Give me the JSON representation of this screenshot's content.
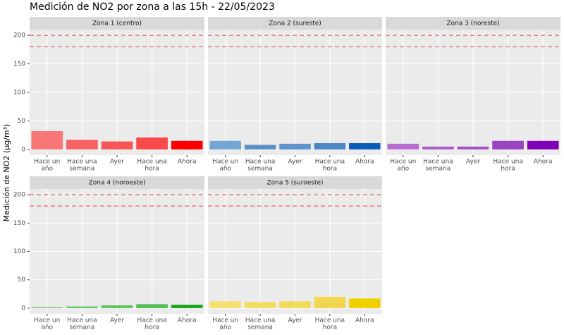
{
  "title": "Medición de NO2 por zona a las 15h - 22/05/2023",
  "y_label": "Medición de NO2 (µg/m³)",
  "chart_data": [
    {
      "type": "bar",
      "title": "Zona 1 (centro)",
      "categories": [
        [
          "Hace un",
          "año"
        ],
        [
          "Hace una",
          "semana"
        ],
        [
          "Ayer"
        ],
        [
          "Hace una",
          "hora"
        ],
        [
          "Ahora"
        ]
      ],
      "values": [
        32,
        17,
        14,
        21,
        15
      ],
      "colors": [
        "#f87676",
        "#f86262",
        "#f85656",
        "#f84a4a",
        "#ff0000"
      ],
      "hlines": [
        200,
        180
      ],
      "hline_color": "#d9473c",
      "ylim": [
        -10,
        210
      ],
      "yticks": [
        0,
        50,
        100,
        150,
        200
      ],
      "grid": true
    },
    {
      "type": "bar",
      "title": "Zona 2 (sureste)",
      "categories": [
        [
          "Hace un",
          "año"
        ],
        [
          "Hace una",
          "semana"
        ],
        [
          "Ayer"
        ],
        [
          "Hace una",
          "hora"
        ],
        [
          "Ahora"
        ]
      ],
      "values": [
        15,
        8,
        10,
        11,
        11
      ],
      "colors": [
        "#74a6d4",
        "#5b8fc8",
        "#5f93c9",
        "#4f86c5",
        "#0c5db5"
      ],
      "hlines": [
        200,
        180
      ],
      "hline_color": "#d9473c",
      "ylim": [
        -10,
        210
      ],
      "yticks": [
        0,
        50,
        100,
        150,
        200
      ],
      "grid": true
    },
    {
      "type": "bar",
      "title": "Zona 3 (noreste)",
      "categories": [
        [
          "Hace un",
          "año"
        ],
        [
          "Hace una",
          "semana"
        ],
        [
          "Ayer"
        ],
        [
          "Hace una",
          "hora"
        ],
        [
          "Ahora"
        ]
      ],
      "values": [
        10,
        5,
        5,
        15,
        15
      ],
      "colors": [
        "#b76ed0",
        "#a85ec8",
        "#a352c4",
        "#9a42c0",
        "#8000b5"
      ],
      "hlines": [
        200,
        180
      ],
      "hline_color": "#d9473c",
      "ylim": [
        -10,
        210
      ],
      "yticks": [
        0,
        50,
        100,
        150,
        200
      ],
      "grid": true
    },
    {
      "type": "bar",
      "title": "Zona 4 (noroeste)",
      "categories": [
        [
          "Hace un",
          "año"
        ],
        [
          "Hace una",
          "semana"
        ],
        [
          "Ayer"
        ],
        [
          "Hace una",
          "hora"
        ],
        [
          "Ahora"
        ]
      ],
      "values": [
        2,
        3,
        5,
        7,
        6
      ],
      "colors": [
        "#7fcf7f",
        "#66c766",
        "#5dc35d",
        "#54c054",
        "#17a817"
      ],
      "hlines": [
        200,
        180
      ],
      "hline_color": "#d9473c",
      "ylim": [
        -10,
        210
      ],
      "yticks": [
        0,
        50,
        100,
        150,
        200
      ],
      "grid": true
    },
    {
      "type": "bar",
      "title": "Zona 5 (suroeste)",
      "categories": [
        [
          "Hace un",
          "año"
        ],
        [
          "Hace una",
          "semana"
        ],
        [
          "Ayer"
        ],
        [
          "Hace una",
          "hora"
        ],
        [
          "Ahora"
        ]
      ],
      "values": [
        12,
        11,
        12,
        20,
        17
      ],
      "colors": [
        "#f5e070",
        "#f3dc62",
        "#f2da5a",
        "#f1d652",
        "#f2d000"
      ],
      "hlines": [
        200,
        180
      ],
      "hline_color": "#d9473c",
      "ylim": [
        -10,
        210
      ],
      "yticks": [
        0,
        50,
        100,
        150,
        200
      ],
      "grid": true
    }
  ]
}
